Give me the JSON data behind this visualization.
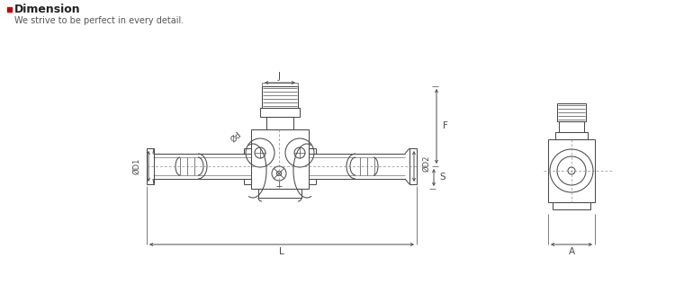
{
  "title": "Dimension",
  "subtitle": "We strive to be perfect in every detail.",
  "title_color": "#222222",
  "subtitle_color": "#555555",
  "bullet_color": "#cc0000",
  "line_color": "#4a4a4a",
  "dash_color": "#888888",
  "bg_color": "#ffffff",
  "dim_labels": [
    "J",
    "F",
    "L",
    "A",
    "ØD1",
    "ØD2",
    "S",
    "Ød"
  ],
  "figsize": [
    7.5,
    3.26
  ],
  "dpi": 100,
  "lw": 0.75
}
